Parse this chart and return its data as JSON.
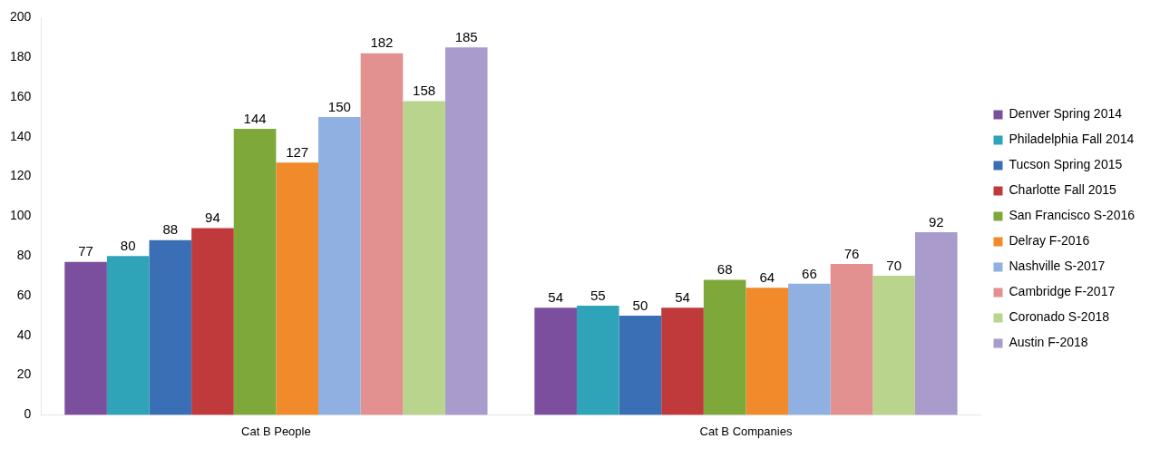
{
  "chart_data": {
    "type": "bar",
    "categories": [
      "Cat B People",
      "Cat B Companies"
    ],
    "series": [
      {
        "name": "Denver Spring 2014",
        "color": "#7b4f9e",
        "values": [
          77,
          54
        ]
      },
      {
        "name": "Philadelphia Fall 2014",
        "color": "#2fa3b8",
        "values": [
          80,
          55
        ]
      },
      {
        "name": "Tucson Spring 2015",
        "color": "#3a6fb5",
        "values": [
          88,
          50
        ]
      },
      {
        "name": "Charlotte Fall 2015",
        "color": "#c0393b",
        "values": [
          94,
          54
        ]
      },
      {
        "name": "San Francisco S-2016",
        "color": "#7fa83a",
        "values": [
          144,
          68
        ]
      },
      {
        "name": "Delray F-2016",
        "color": "#f08a2a",
        "values": [
          127,
          64
        ]
      },
      {
        "name": "Nashville S-2017",
        "color": "#8fb0e0",
        "values": [
          150,
          66
        ]
      },
      {
        "name": "Cambridge F-2017",
        "color": "#e29090",
        "values": [
          182,
          76
        ]
      },
      {
        "name": "Coronado S-2018",
        "color": "#b9d48c",
        "values": [
          158,
          70
        ]
      },
      {
        "name": "Austin F-2018",
        "color": "#a99bcb",
        "values": [
          185,
          92
        ]
      }
    ],
    "ylim": [
      0,
      200
    ],
    "yticks": [
      0,
      20,
      40,
      60,
      80,
      100,
      120,
      140,
      160,
      180,
      200
    ],
    "grid": false,
    "legend": "right",
    "data_labels": true
  }
}
